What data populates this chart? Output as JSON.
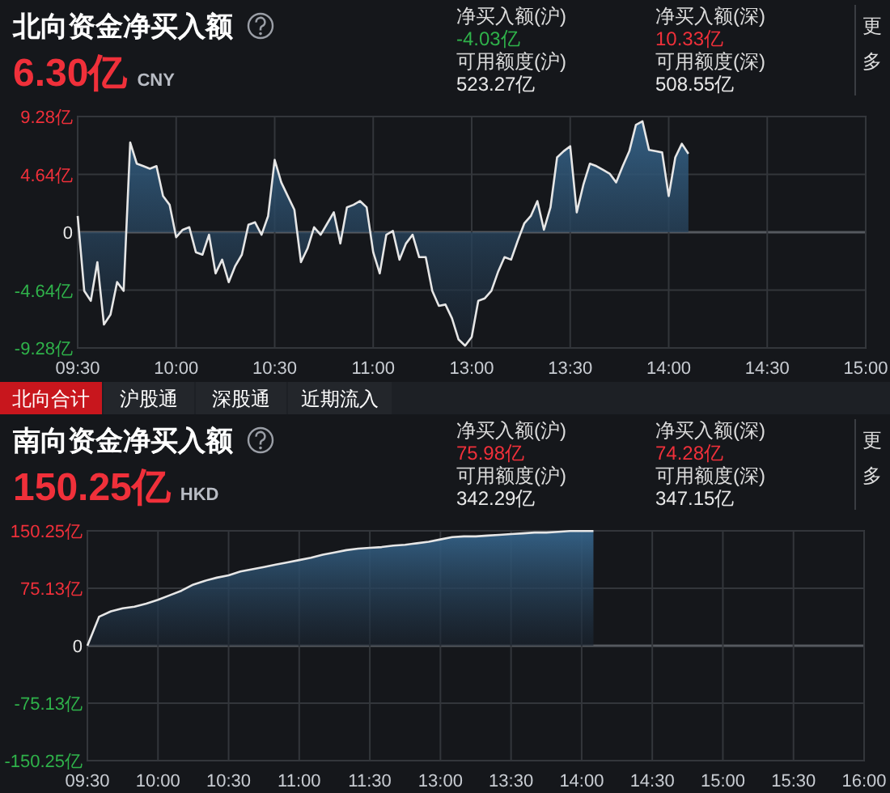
{
  "chart_data": [
    {
      "type": "area",
      "title": "北向资金净买入额",
      "subtitle": "6.30亿",
      "annotations": [
        "CNY",
        "净买入额(沪)",
        "-4.03亿",
        "净买入额(深)",
        "10.33亿",
        "可用额度(沪)",
        "523.27亿",
        "可用额度(深)",
        "508.55亿",
        "更多",
        "北向合计",
        "沪股通",
        "深股通",
        "近期流入"
      ],
      "categories": [
        "09:30",
        null,
        null,
        null,
        null,
        null,
        null,
        null,
        null,
        null,
        null,
        null,
        null,
        null,
        null,
        "10:00",
        null,
        null,
        null,
        null,
        null,
        null,
        null,
        null,
        null,
        null,
        null,
        null,
        null,
        null,
        "10:30",
        null,
        null,
        null,
        null,
        null,
        null,
        null,
        null,
        null,
        null,
        null,
        null,
        null,
        null,
        "11:00",
        null,
        null,
        null,
        null,
        null,
        null,
        null,
        null,
        null,
        null,
        null,
        null,
        null,
        null,
        "13:00",
        null,
        null,
        null,
        null,
        null,
        null,
        null,
        null,
        null,
        null,
        null,
        null,
        null,
        null,
        "13:30",
        null,
        null,
        null,
        null,
        null,
        null,
        null,
        null,
        null,
        null,
        null,
        null,
        null,
        null,
        "14:00",
        null,
        null,
        null,
        null,
        null,
        null,
        null,
        null,
        null,
        null,
        null,
        null,
        null,
        null,
        "14:30",
        null,
        null,
        null,
        null,
        null,
        null,
        null,
        null,
        null,
        null,
        null,
        null,
        null,
        null,
        "15:00"
      ],
      "series": [
        {
          "color": "#e6e6e6",
          "values": [
            1.3,
            -4.7,
            -5.5,
            -2.4,
            -7.4,
            -6.6,
            -4.0,
            -4.7,
            7.2,
            5.5,
            5.3,
            5.1,
            5.3,
            2.9,
            2.2,
            -0.4,
            0.2,
            0.4,
            -1.6,
            -1.8,
            -0.2,
            -3.3,
            -2.2,
            -4.0,
            -2.7,
            -1.8,
            0.6,
            0.8,
            -0.2,
            1.3,
            5.8,
            4.0,
            2.9,
            1.8,
            -2.4,
            -1.3,
            0.4,
            -0.2,
            0.7,
            1.6,
            -0.9,
            2.0,
            2.2,
            2.5,
            2.0,
            -1.6,
            -3.3,
            -0.2,
            0.1,
            -2.2,
            -0.9,
            -0.2,
            -2.0,
            -2.0,
            -4.7,
            -5.9,
            -5.8,
            -6.9,
            -8.6,
            -9.1,
            -8.4,
            -5.5,
            -5.3,
            -4.7,
            -3.2,
            -2.0,
            -2.2,
            -0.7,
            0.7,
            1.3,
            2.5,
            0.2,
            2.0,
            6.0,
            6.5,
            6.9,
            1.6,
            3.8,
            5.5,
            5.3,
            5.0,
            4.7,
            4.0,
            5.3,
            6.5,
            8.6,
            8.9,
            6.6,
            6.5,
            6.4,
            2.9,
            6.0,
            7.1,
            6.3,
            null,
            null,
            null,
            null,
            null,
            null,
            null,
            null,
            null,
            null,
            null,
            null,
            null,
            null,
            null,
            null,
            null,
            null,
            null,
            null,
            null,
            null,
            null,
            null,
            null,
            null,
            null
          ]
        }
      ],
      "ylim": [
        -9.28,
        9.28
      ],
      "yticks": [
        {
          "value": 9.28,
          "label": "9.28亿"
        },
        {
          "value": 4.64,
          "label": "4.64亿"
        },
        0,
        {
          "value": -4.64,
          "label": "-4.64亿"
        },
        {
          "value": -9.28,
          "label": "-9.28亿"
        }
      ],
      "grid": true
    },
    {
      "type": "area",
      "title": "南向资金净买入额",
      "subtitle": "150.25亿",
      "annotations": [
        "HKD",
        "净买入额(沪)",
        "75.98亿",
        "净买入额(深)",
        "74.28亿",
        "可用额度(沪)",
        "342.29亿",
        "可用额度(深)",
        "347.15亿",
        "更多"
      ],
      "categories": [
        "09:30",
        null,
        null,
        null,
        null,
        null,
        "10:00",
        null,
        null,
        null,
        null,
        null,
        "10:30",
        null,
        null,
        null,
        null,
        null,
        "11:00",
        null,
        null,
        null,
        null,
        null,
        "11:30",
        null,
        null,
        null,
        null,
        null,
        "13:00",
        null,
        null,
        null,
        null,
        null,
        "13:30",
        null,
        null,
        null,
        null,
        null,
        "14:00",
        null,
        null,
        null,
        null,
        null,
        "14:30",
        null,
        null,
        null,
        null,
        null,
        "15:00",
        null,
        null,
        null,
        null,
        null,
        "15:30",
        null,
        null,
        null,
        null,
        null,
        "16:00"
      ],
      "series": [
        {
          "color": "#e6e6e6",
          "values": [
            0,
            38,
            45,
            49,
            51,
            55,
            60,
            66,
            72,
            80,
            85,
            89,
            92,
            97,
            100,
            103,
            106,
            109,
            112,
            115,
            119,
            122,
            125,
            127,
            128,
            129,
            131,
            132,
            134,
            136,
            139,
            142,
            143,
            143,
            144,
            145,
            146,
            147,
            148,
            148,
            149,
            150,
            150,
            150,
            null,
            null,
            null,
            null,
            null,
            null,
            null,
            null,
            null,
            null,
            null,
            null,
            null,
            null,
            null,
            null,
            null,
            null,
            null,
            null,
            null,
            null,
            null
          ]
        }
      ],
      "ylim": [
        -150.25,
        150.25
      ],
      "yticks": [
        {
          "value": 150.25,
          "label": "150.25亿"
        },
        {
          "value": 75.13,
          "label": "75.13亿"
        },
        0,
        {
          "value": -75.13,
          "label": "-75.13亿"
        },
        {
          "value": -150.25,
          "label": "-150.25亿"
        }
      ],
      "grid": true
    }
  ]
}
